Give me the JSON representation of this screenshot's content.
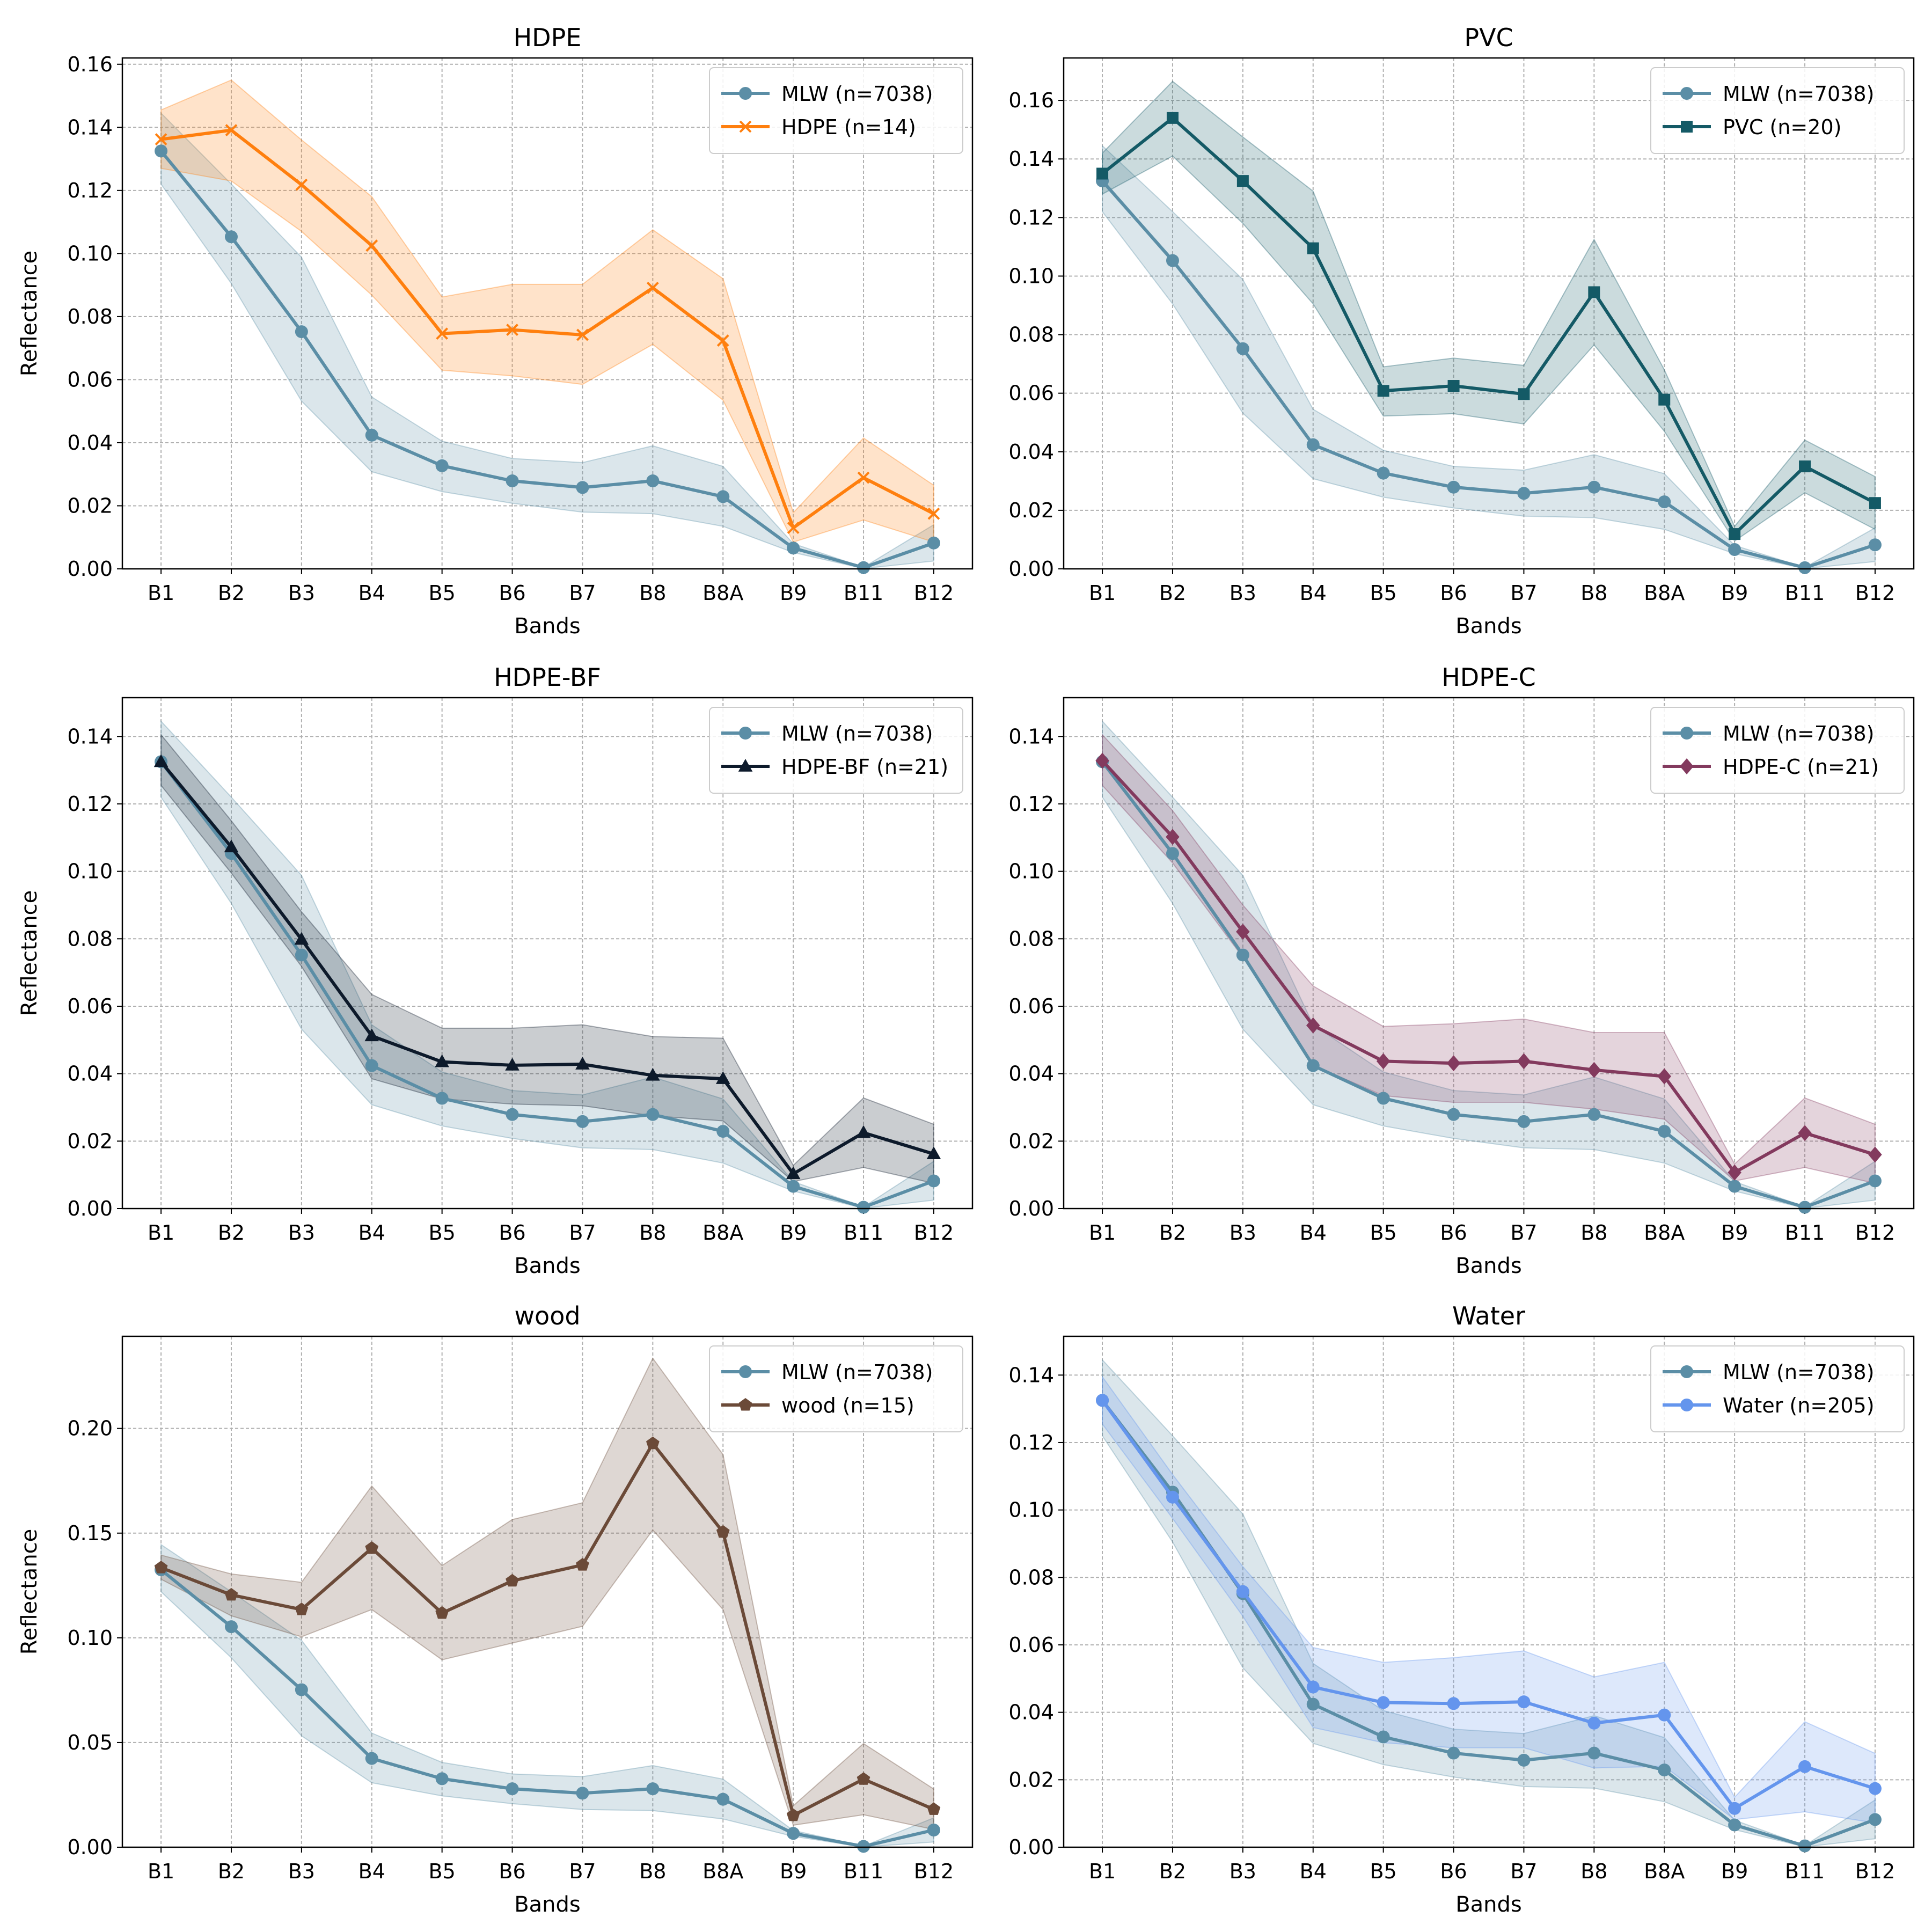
{
  "chart_data": [
    {
      "type": "line",
      "title": "HDPE",
      "xlabel": "Bands",
      "ylabel": "Reflectance",
      "categories": [
        "B1",
        "B2",
        "B3",
        "B4",
        "B5",
        "B6",
        "B7",
        "B8",
        "B8A",
        "B9",
        "B11",
        "B12"
      ],
      "ylim": [
        0,
        0.162
      ],
      "yticks": [
        "0.00",
        "0.02",
        "0.04",
        "0.06",
        "0.08",
        "0.10",
        "0.12",
        "0.14",
        "0.16"
      ],
      "grid": true,
      "legend": "top-right",
      "series": [
        {
          "name": "MLW (n=7038)",
          "color": "#5b8ea6",
          "marker": "circle",
          "values": [
            0.1325,
            0.1053,
            0.0752,
            0.0424,
            0.0327,
            0.0279,
            0.0258,
            0.0279,
            0.0229,
            0.0066,
            0.0004,
            0.0082
          ],
          "lower": [
            0.122,
            0.0905,
            0.0532,
            0.0308,
            0.0245,
            0.0208,
            0.018,
            0.0175,
            0.0135,
            0.0052,
            0.0001,
            0.0025
          ],
          "upper": [
            0.1445,
            0.122,
            0.0988,
            0.0545,
            0.0405,
            0.035,
            0.0337,
            0.039,
            0.0325,
            0.008,
            0.0005,
            0.014
          ]
        },
        {
          "name": "HDPE (n=14)",
          "color": "#ff7f0e",
          "marker": "x",
          "values": [
            0.1362,
            0.1391,
            0.1218,
            0.1025,
            0.0746,
            0.0758,
            0.0742,
            0.0891,
            0.0724,
            0.013,
            0.0289,
            0.0175
          ],
          "lower": [
            0.127,
            0.123,
            0.107,
            0.0868,
            0.063,
            0.0612,
            0.0585,
            0.0712,
            0.0535,
            0.0085,
            0.0155,
            0.0085
          ],
          "upper": [
            0.1455,
            0.155,
            0.136,
            0.118,
            0.0862,
            0.0902,
            0.0902,
            0.1075,
            0.092,
            0.0178,
            0.0415,
            0.0265
          ]
        }
      ]
    },
    {
      "type": "line",
      "title": "PVC",
      "xlabel": "Bands",
      "ylabel": "",
      "categories": [
        "B1",
        "B2",
        "B3",
        "B4",
        "B5",
        "B6",
        "B7",
        "B8",
        "B8A",
        "B9",
        "B11",
        "B12"
      ],
      "ylim": [
        0,
        0.1745
      ],
      "yticks": [
        "0.00",
        "0.02",
        "0.04",
        "0.06",
        "0.08",
        "0.10",
        "0.12",
        "0.14",
        "0.16"
      ],
      "grid": true,
      "legend": "top-right",
      "series": [
        {
          "name": "MLW (n=7038)",
          "color": "#5b8ea6",
          "marker": "circle",
          "values": [
            0.1325,
            0.1053,
            0.0752,
            0.0424,
            0.0327,
            0.0279,
            0.0258,
            0.0279,
            0.0229,
            0.0066,
            0.0004,
            0.0082
          ],
          "lower": [
            0.122,
            0.0905,
            0.0532,
            0.0308,
            0.0245,
            0.0208,
            0.018,
            0.0175,
            0.0135,
            0.0052,
            0.0001,
            0.0025
          ],
          "upper": [
            0.1445,
            0.122,
            0.0988,
            0.0545,
            0.0405,
            0.035,
            0.0337,
            0.039,
            0.0325,
            0.008,
            0.0005,
            0.014
          ]
        },
        {
          "name": "PVC (n=20)",
          "color": "#145a66",
          "marker": "square",
          "values": [
            0.135,
            0.154,
            0.1325,
            0.1095,
            0.0608,
            0.0625,
            0.0597,
            0.0945,
            0.0578,
            0.0119,
            0.035,
            0.0225
          ],
          "lower": [
            0.128,
            0.141,
            0.118,
            0.0905,
            0.0522,
            0.053,
            0.0495,
            0.0765,
            0.047,
            0.0095,
            0.026,
            0.0135
          ],
          "upper": [
            0.142,
            0.1665,
            0.1475,
            0.129,
            0.069,
            0.072,
            0.0695,
            0.1125,
            0.068,
            0.0145,
            0.044,
            0.0315
          ]
        }
      ]
    },
    {
      "type": "line",
      "title": "HDPE-BF",
      "xlabel": "Bands",
      "ylabel": "Reflectance",
      "categories": [
        "B1",
        "B2",
        "B3",
        "B4",
        "B5",
        "B6",
        "B7",
        "B8",
        "B8A",
        "B9",
        "B11",
        "B12"
      ],
      "ylim": [
        0,
        0.1515
      ],
      "yticks": [
        "0.00",
        "0.02",
        "0.04",
        "0.06",
        "0.08",
        "0.10",
        "0.12",
        "0.14"
      ],
      "grid": true,
      "legend": "top-right",
      "series": [
        {
          "name": "MLW (n=7038)",
          "color": "#5b8ea6",
          "marker": "circle",
          "values": [
            0.1325,
            0.1053,
            0.0752,
            0.0424,
            0.0327,
            0.0279,
            0.0258,
            0.0279,
            0.0229,
            0.0066,
            0.0004,
            0.0082
          ],
          "lower": [
            0.122,
            0.0905,
            0.0532,
            0.0308,
            0.0245,
            0.0208,
            0.018,
            0.0175,
            0.0135,
            0.0052,
            0.0001,
            0.0025
          ],
          "upper": [
            0.1445,
            0.122,
            0.0988,
            0.0545,
            0.0405,
            0.035,
            0.0337,
            0.039,
            0.0325,
            0.008,
            0.0005,
            0.014
          ]
        },
        {
          "name": "HDPE-BF (n=21)",
          "color": "#0d1a2b",
          "marker": "triangle",
          "values": [
            0.1325,
            0.1072,
            0.0798,
            0.0512,
            0.0435,
            0.0425,
            0.0428,
            0.0395,
            0.0385,
            0.0103,
            0.0225,
            0.0162
          ],
          "lower": [
            0.1255,
            0.0995,
            0.0718,
            0.0385,
            0.0325,
            0.031,
            0.0305,
            0.0275,
            0.026,
            0.008,
            0.0122,
            0.0075
          ],
          "upper": [
            0.1405,
            0.115,
            0.088,
            0.0635,
            0.0535,
            0.0535,
            0.0545,
            0.051,
            0.0505,
            0.0128,
            0.0328,
            0.025
          ]
        }
      ]
    },
    {
      "type": "line",
      "title": "HDPE-C",
      "xlabel": "Bands",
      "ylabel": "",
      "categories": [
        "B1",
        "B2",
        "B3",
        "B4",
        "B5",
        "B6",
        "B7",
        "B8",
        "B8A",
        "B9",
        "B11",
        "B12"
      ],
      "ylim": [
        0,
        0.1515
      ],
      "yticks": [
        "0.00",
        "0.02",
        "0.04",
        "0.06",
        "0.08",
        "0.10",
        "0.12",
        "0.14"
      ],
      "grid": true,
      "legend": "top-right",
      "series": [
        {
          "name": "MLW (n=7038)",
          "color": "#5b8ea6",
          "marker": "circle",
          "values": [
            0.1325,
            0.1053,
            0.0752,
            0.0424,
            0.0327,
            0.0279,
            0.0258,
            0.0279,
            0.0229,
            0.0066,
            0.0004,
            0.0082
          ],
          "lower": [
            0.122,
            0.0905,
            0.0532,
            0.0308,
            0.0245,
            0.0208,
            0.018,
            0.0175,
            0.0135,
            0.0052,
            0.0001,
            0.0025
          ],
          "upper": [
            0.1445,
            0.122,
            0.0988,
            0.0545,
            0.0405,
            0.035,
            0.0337,
            0.039,
            0.0325,
            0.008,
            0.0005,
            0.014
          ]
        },
        {
          "name": "HDPE-C (n=21)",
          "color": "#833a5e",
          "marker": "diamond",
          "values": [
            0.1328,
            0.1102,
            0.0821,
            0.0543,
            0.0437,
            0.0431,
            0.0437,
            0.0411,
            0.0392,
            0.0107,
            0.0224,
            0.016
          ],
          "lower": [
            0.1255,
            0.1025,
            0.0745,
            0.0425,
            0.0335,
            0.0315,
            0.0315,
            0.0295,
            0.0265,
            0.0082,
            0.0122,
            0.0075
          ],
          "upper": [
            0.1405,
            0.118,
            0.09,
            0.066,
            0.054,
            0.0548,
            0.0562,
            0.0522,
            0.0522,
            0.0132,
            0.0328,
            0.025
          ]
        }
      ]
    },
    {
      "type": "line",
      "title": "wood",
      "xlabel": "Bands",
      "ylabel": "Reflectance",
      "categories": [
        "B1",
        "B2",
        "B3",
        "B4",
        "B5",
        "B6",
        "B7",
        "B8",
        "B8A",
        "B9",
        "B11",
        "B12"
      ],
      "ylim": [
        0,
        0.244
      ],
      "yticks": [
        "0.00",
        "0.05",
        "0.10",
        "0.15",
        "0.20"
      ],
      "grid": true,
      "legend": "top-right",
      "series": [
        {
          "name": "MLW (n=7038)",
          "color": "#5b8ea6",
          "marker": "circle",
          "values": [
            0.1325,
            0.1053,
            0.0752,
            0.0424,
            0.0327,
            0.0279,
            0.0258,
            0.0279,
            0.0229,
            0.0066,
            0.0004,
            0.0082
          ],
          "lower": [
            0.122,
            0.0905,
            0.0532,
            0.0308,
            0.0245,
            0.0208,
            0.018,
            0.0175,
            0.0135,
            0.0052,
            0.0001,
            0.0025
          ],
          "upper": [
            0.1445,
            0.122,
            0.0988,
            0.0545,
            0.0405,
            0.035,
            0.0337,
            0.039,
            0.0325,
            0.008,
            0.0005,
            0.014
          ]
        },
        {
          "name": "wood (n=15)",
          "color": "#6b4a38",
          "marker": "pentagon",
          "values": [
            0.1335,
            0.1205,
            0.1135,
            0.1428,
            0.1118,
            0.1272,
            0.1348,
            0.1928,
            0.1505,
            0.0152,
            0.0325,
            0.0181
          ],
          "lower": [
            0.128,
            0.1105,
            0.1005,
            0.1135,
            0.0895,
            0.0975,
            0.1055,
            0.1515,
            0.1135,
            0.0105,
            0.0155,
            0.0085
          ],
          "upper": [
            0.1395,
            0.1305,
            0.1265,
            0.1725,
            0.1345,
            0.1565,
            0.1645,
            0.2335,
            0.1875,
            0.0198,
            0.0495,
            0.0278
          ]
        }
      ]
    },
    {
      "type": "line",
      "title": "Water",
      "xlabel": "Bands",
      "ylabel": "",
      "categories": [
        "B1",
        "B2",
        "B3",
        "B4",
        "B5",
        "B6",
        "B7",
        "B8",
        "B8A",
        "B9",
        "B11",
        "B12"
      ],
      "ylim": [
        0,
        0.1515
      ],
      "yticks": [
        "0.00",
        "0.02",
        "0.04",
        "0.06",
        "0.08",
        "0.10",
        "0.12",
        "0.14"
      ],
      "grid": true,
      "legend": "top-right",
      "series": [
        {
          "name": "MLW (n=7038)",
          "color": "#5b8ea6",
          "marker": "circle",
          "values": [
            0.1325,
            0.1053,
            0.0752,
            0.0424,
            0.0327,
            0.0279,
            0.0258,
            0.0279,
            0.0229,
            0.0066,
            0.0004,
            0.0082
          ],
          "lower": [
            0.122,
            0.0905,
            0.0532,
            0.0308,
            0.0245,
            0.0208,
            0.018,
            0.0175,
            0.0135,
            0.0052,
            0.0001,
            0.0025
          ],
          "upper": [
            0.1445,
            0.122,
            0.0988,
            0.0545,
            0.0405,
            0.035,
            0.0337,
            0.039,
            0.0325,
            0.008,
            0.0005,
            0.014
          ]
        },
        {
          "name": "Water (n=205)",
          "color": "#6495ed",
          "marker": "circle",
          "values": [
            0.1325,
            0.1038,
            0.0758,
            0.0475,
            0.0429,
            0.0426,
            0.0431,
            0.0368,
            0.0392,
            0.0115,
            0.0239,
            0.0174
          ],
          "lower": [
            0.1255,
            0.0975,
            0.0685,
            0.0355,
            0.031,
            0.0295,
            0.0295,
            0.0235,
            0.024,
            0.0082,
            0.0105,
            0.0072
          ],
          "upper": [
            0.1395,
            0.1105,
            0.0832,
            0.0592,
            0.0548,
            0.0562,
            0.0582,
            0.0505,
            0.0548,
            0.0148,
            0.0372,
            0.0278
          ]
        }
      ]
    }
  ]
}
